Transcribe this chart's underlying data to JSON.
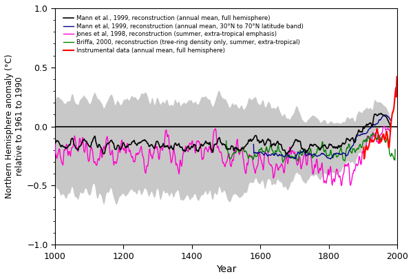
{
  "xlabel": "Year",
  "ylabel": "Northern Hemisphere anomaly (°C)\nrelative to 1961 to 1990",
  "xlim": [
    1000,
    2000
  ],
  "ylim": [
    -1.0,
    1.0
  ],
  "yticks": [
    -1.0,
    -0.5,
    0.0,
    0.5,
    1.0
  ],
  "xticks": [
    1000,
    1200,
    1400,
    1600,
    1800,
    2000
  ],
  "shade_color": "#c8c8c8",
  "zero_line_color": "#000000",
  "mann99_full_color": "#000000",
  "mann99_band_color": "#00008B",
  "jones98_color": "#FF00CC",
  "briffa00_color": "#008000",
  "instrumental_color": "#FF0000",
  "legend_labels": [
    "Mann et al., 1999, reconstruction (annual mean, full hemisphere)",
    "Mann et al, 1999, reconstruction (annual mean, 30°N to 70°N latitude band)",
    "Jones et al, 1998, reconstruction (summer, extra-tropical emphasis)",
    "Briffa, 2000, reconstruction (tree-ring density only, summer, extra-tropical)",
    "Instrumental data (annual mean, full hemisphere)"
  ],
  "background_color": "#ffffff",
  "fig_width": 6.0,
  "fig_height": 4.05,
  "dpi": 100
}
